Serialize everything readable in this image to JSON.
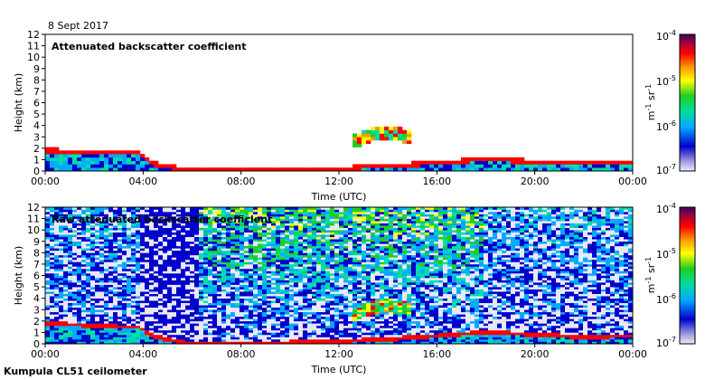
{
  "figure": {
    "date": "8 Sept 2017",
    "footer": "Kumpula CL51 ceilometer"
  },
  "chart_data": [
    {
      "type": "heatmap",
      "title": "Attenuated backscatter coefficient",
      "xlabel": "Time (UTC)",
      "ylabel": "Height (km)",
      "x_ticks": [
        "00:00",
        "04:00",
        "08:00",
        "12:00",
        "16:00",
        "20:00",
        "00:00"
      ],
      "xlim_hours": [
        0,
        24
      ],
      "y_ticks": [
        0,
        1,
        2,
        3,
        4,
        5,
        6,
        7,
        8,
        9,
        10,
        11,
        12
      ],
      "ylim": [
        0,
        12
      ],
      "colorbar": {
        "scale": "log",
        "range": [
          1e-07,
          0.0001
        ],
        "tick_labels": [
          "10^-4",
          "10^-5",
          "10^-6",
          "10^-7"
        ],
        "unit": "m^-1 sr^-1",
        "colors": [
          "#e8e8f6",
          "#0000cc",
          "#00aaff",
          "#00ddaa",
          "#22cc22",
          "#ffff00",
          "#ff9900",
          "#ff0000",
          "#a00040",
          "#3a0060"
        ]
      },
      "layers": [
        {
          "name": "boundary layer",
          "t": [
            0,
            1,
            2,
            3,
            3.8,
            4.5,
            6,
            8,
            10,
            12,
            14,
            16,
            18,
            20,
            22,
            24
          ],
          "top_km": [
            2.0,
            1.9,
            1.8,
            1.7,
            1.7,
            0.8,
            0.2,
            0.2,
            0.3,
            0.4,
            0.6,
            0.9,
            1.2,
            1.0,
            0.8,
            0.9
          ]
        },
        {
          "name": "cloud",
          "t": [
            12.5,
            13,
            13.5,
            14,
            14.5,
            15
          ],
          "base_km": [
            1.8,
            2.4,
            2.6,
            2.8,
            2.6,
            2.4
          ]
        }
      ]
    },
    {
      "type": "heatmap",
      "title": "Raw attenuated backscatter coefficient",
      "xlabel": "Time (UTC)",
      "ylabel": "Height (km)",
      "x_ticks": [
        "00:00",
        "04:00",
        "08:00",
        "12:00",
        "16:00",
        "20:00",
        "00:00"
      ],
      "xlim_hours": [
        0,
        24
      ],
      "y_ticks": [
        0,
        1,
        2,
        3,
        4,
        5,
        6,
        7,
        8,
        9,
        10,
        11,
        12
      ],
      "ylim": [
        0,
        12
      ],
      "colorbar": {
        "scale": "log",
        "range": [
          1e-07,
          0.0001
        ],
        "tick_labels": [
          "10^-4",
          "10^-5",
          "10^-6",
          "10^-7"
        ],
        "unit": "m^-1 sr^-1"
      }
    }
  ]
}
